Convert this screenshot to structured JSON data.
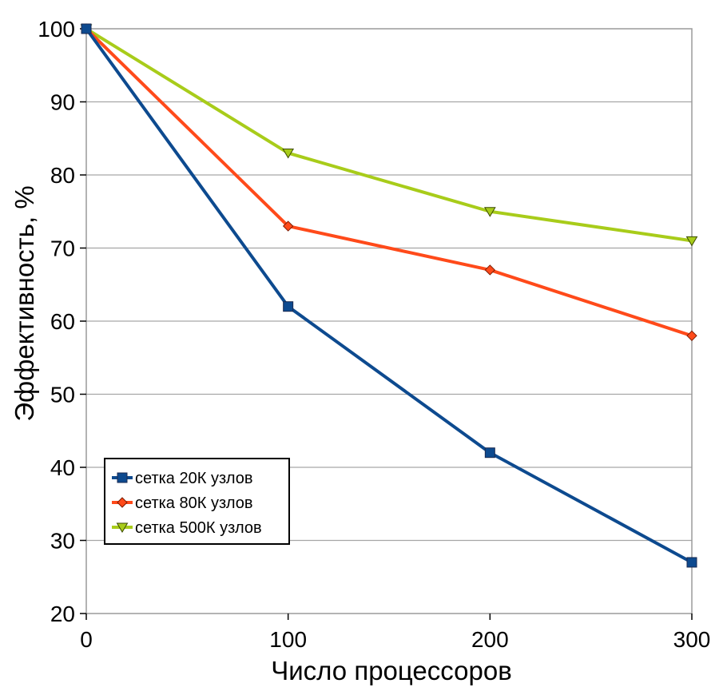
{
  "chart_data": {
    "type": "line",
    "title": "",
    "xlabel": "Число  процессоров",
    "ylabel": "Эффективность, %",
    "x": [
      0,
      100,
      200,
      300
    ],
    "xlim": [
      0,
      300
    ],
    "ylim": [
      20,
      100
    ],
    "xticks": [
      "0",
      "100",
      "200",
      "300"
    ],
    "yticks": [
      "20",
      "30",
      "40",
      "50",
      "60",
      "70",
      "80",
      "90",
      "100"
    ],
    "grid": "horizontal",
    "legend_position": "bottom-left",
    "series": [
      {
        "name": "сетка 20К узлов",
        "values": [
          100,
          62,
          42,
          27
        ],
        "color": "#0d4a8f",
        "marker": "square"
      },
      {
        "name": "сетка 80К узлов",
        "values": [
          100,
          73,
          67,
          58
        ],
        "color": "#ff4a1a",
        "marker": "diamond"
      },
      {
        "name": "сетка 500К узлов",
        "values": [
          100,
          83,
          75,
          71
        ],
        "color": "#a8cc1a",
        "marker": "triangle-down"
      }
    ]
  }
}
